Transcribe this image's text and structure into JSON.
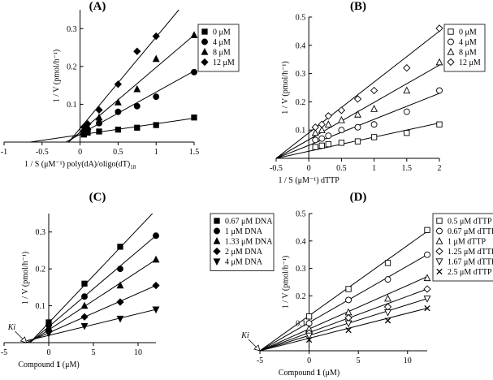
{
  "chart_data": [
    {
      "panel": "(A)",
      "type": "scatter",
      "xlabel": "1 / S (μM⁻¹) poly(dA)/oligo(dT)",
      "xlabel_sub": "18",
      "ylabel": "1 / V (pmol/h⁻¹)",
      "xlim": [
        -1,
        1.5
      ],
      "ylim": [
        0,
        0.35
      ],
      "xticks": [
        "-1",
        "-0.5",
        "0",
        "0.5",
        "1",
        "1.5"
      ],
      "yticks": [
        "0.1",
        "0.2",
        "0.3"
      ],
      "legend_position": "top-right",
      "marker_fill": "filled",
      "series": [
        {
          "name": "0 μM",
          "marker": "square",
          "x": [
            0.05,
            0.1,
            0.25,
            0.5,
            0.75,
            1.0,
            1.5
          ],
          "y": [
            0.02,
            0.025,
            0.028,
            0.033,
            0.038,
            0.045,
            0.065
          ],
          "fit": [
            [
              -1,
              -0.01
            ],
            [
              1.5,
              0.063
            ]
          ]
        },
        {
          "name": "4 μM",
          "marker": "circle",
          "x": [
            0.05,
            0.1,
            0.25,
            0.5,
            0.75,
            1.0,
            1.5
          ],
          "y": [
            0.028,
            0.033,
            0.05,
            0.08,
            0.095,
            0.12,
            0.185
          ],
          "fit": [
            [
              -0.5,
              -0.035
            ],
            [
              1.5,
              0.188
            ]
          ]
        },
        {
          "name": "8 μM",
          "marker": "triangle",
          "x": [
            0.05,
            0.1,
            0.25,
            0.5,
            0.75,
            1.0,
            1.5
          ],
          "y": [
            0.035,
            0.04,
            0.065,
            0.105,
            0.14,
            0.22,
            0.283
          ],
          "fit": [
            [
              -0.3,
              -0.025
            ],
            [
              1.5,
              0.283
            ]
          ]
        },
        {
          "name": "12 μM",
          "marker": "diamond",
          "x": [
            0.05,
            0.1,
            0.25,
            0.5,
            0.75,
            1.0
          ],
          "y": [
            0.04,
            0.048,
            0.085,
            0.153,
            0.24,
            0.28
          ],
          "fit": [
            [
              -0.2,
              -0.012
            ],
            [
              1.3,
              0.35
            ]
          ]
        }
      ]
    },
    {
      "panel": "(B)",
      "type": "scatter",
      "xlabel": "1 / S (μM⁻¹)  dTTP",
      "xlabel_sub": "",
      "ylabel": "1 / V (pmol/h⁻¹)",
      "xlim": [
        -0.5,
        2
      ],
      "ylim": [
        0,
        0.5
      ],
      "xticks": [
        "-0.5",
        "0",
        "0.5",
        "1",
        "1.5",
        "2"
      ],
      "yticks": [
        "0.1",
        "0.2",
        "0.3",
        "0.4",
        "0.5"
      ],
      "legend_position": "top-right",
      "marker_fill": "open",
      "series": [
        {
          "name": "0 μM",
          "marker": "square",
          "x": [
            0.1,
            0.2,
            0.3,
            0.5,
            0.75,
            1.0,
            1.5,
            2.0
          ],
          "y": [
            0.04,
            0.045,
            0.05,
            0.055,
            0.06,
            0.075,
            0.09,
            0.12
          ],
          "fit": [
            [
              -0.5,
              0.0
            ],
            [
              2,
              0.125
            ]
          ]
        },
        {
          "name": "4 μM",
          "marker": "circle",
          "x": [
            0.1,
            0.2,
            0.3,
            0.5,
            0.75,
            1.0,
            1.5,
            2.0
          ],
          "y": [
            0.065,
            0.07,
            0.08,
            0.1,
            0.11,
            0.12,
            0.165,
            0.24
          ],
          "fit": [
            [
              -0.5,
              0.0
            ],
            [
              2,
              0.23
            ]
          ]
        },
        {
          "name": "8 μM",
          "marker": "triangle",
          "x": [
            0.1,
            0.2,
            0.3,
            0.5,
            0.75,
            1.0,
            1.5,
            2.0
          ],
          "y": [
            0.09,
            0.1,
            0.12,
            0.135,
            0.155,
            0.175,
            0.24,
            0.34
          ],
          "fit": [
            [
              -0.5,
              0.0
            ],
            [
              2,
              0.33
            ]
          ]
        },
        {
          "name": "12 μM",
          "marker": "diamond",
          "x": [
            0.1,
            0.2,
            0.3,
            0.5,
            0.75,
            1.0,
            1.5,
            2.0
          ],
          "y": [
            0.11,
            0.12,
            0.15,
            0.17,
            0.21,
            0.24,
            0.32,
            0.46
          ],
          "fit": [
            [
              -0.5,
              0.0
            ],
            [
              2,
              0.45
            ]
          ]
        }
      ]
    },
    {
      "panel": "(C)",
      "type": "scatter",
      "xlabel": "Compound",
      "xlabel_bold": "1",
      "xlabel_unit": "(μM)",
      "ylabel": "1 / V (pmol/h⁻¹)",
      "xlim": [
        -5,
        12
      ],
      "ylim": [
        0,
        0.35
      ],
      "xticks": [
        "-5",
        "0",
        "5",
        "10"
      ],
      "yticks": [
        "0.1",
        "0.2",
        "0.3"
      ],
      "annotation": "Ki",
      "annotation_x": -2.5,
      "legend_position": "top-right",
      "marker_fill": "filled",
      "series": [
        {
          "name": "0.67 μM DNA",
          "marker": "square",
          "x": [
            0,
            4,
            8
          ],
          "y": [
            0.055,
            0.16,
            0.26
          ],
          "fit": [
            [
              -2.5,
              -0.01
            ],
            [
              12,
              0.36
            ]
          ]
        },
        {
          "name": "1 μM DNA",
          "marker": "circle",
          "x": [
            0,
            4,
            8,
            12
          ],
          "y": [
            0.047,
            0.125,
            0.2,
            0.29
          ],
          "fit": [
            [
              -2.5,
              -0.008
            ],
            [
              12,
              0.29
            ]
          ]
        },
        {
          "name": "1.33 μM DNA",
          "marker": "triangle",
          "x": [
            0,
            4,
            8,
            12
          ],
          "y": [
            0.04,
            0.1,
            0.155,
            0.225
          ],
          "fit": [
            [
              -2.5,
              -0.005
            ],
            [
              12,
              0.225
            ]
          ]
        },
        {
          "name": "2 μM DNA",
          "marker": "diamond",
          "x": [
            0,
            4,
            8,
            12
          ],
          "y": [
            0.03,
            0.07,
            0.11,
            0.155
          ],
          "fit": [
            [
              -2.5,
              0.0
            ],
            [
              12,
              0.155
            ]
          ]
        },
        {
          "name": "4 μM DNA",
          "marker": "triangle-down",
          "x": [
            0,
            4,
            8,
            12
          ],
          "y": [
            0.025,
            0.045,
            0.065,
            0.09
          ],
          "fit": [
            [
              -2.5,
              0.005
            ],
            [
              12,
              0.09
            ]
          ]
        }
      ]
    },
    {
      "panel": "(D)",
      "type": "scatter",
      "xlabel": "Compound",
      "xlabel_bold": "1",
      "xlabel_unit": "(μM)",
      "ylabel": "1 / V (pmol/h⁻¹)",
      "xlim": [
        -5,
        12
      ],
      "ylim": [
        0,
        0.5
      ],
      "xticks": [
        "-5",
        "0",
        "5",
        "10"
      ],
      "yticks": [
        "0.1",
        "0.2",
        "0.3",
        "0.4",
        "0.5"
      ],
      "annotation": "Ki",
      "annotation_x": -5,
      "legend_position": "top-right",
      "marker_fill": "open",
      "series": [
        {
          "name": "0.5 μM dTTP",
          "marker": "square",
          "x": [
            0,
            4,
            8,
            12
          ],
          "y": [
            0.125,
            0.225,
            0.32,
            0.44
          ],
          "fit": [
            [
              -5,
              0.0
            ],
            [
              12,
              0.435
            ]
          ]
        },
        {
          "name": "0.67 μM dTTP",
          "marker": "circle",
          "x": [
            0,
            4,
            8,
            12
          ],
          "y": [
            0.1,
            0.185,
            0.26,
            0.35
          ],
          "fit": [
            [
              -5,
              0.0
            ],
            [
              12,
              0.35
            ]
          ]
        },
        {
          "name": "1 μM dTTP",
          "marker": "triangle",
          "x": [
            0,
            4,
            8,
            12
          ],
          "y": [
            0.08,
            0.14,
            0.19,
            0.265
          ],
          "fit": [
            [
              -5,
              0.0
            ],
            [
              12,
              0.27
            ]
          ]
        },
        {
          "name": "1.25 μM dTTP",
          "marker": "diamond",
          "x": [
            0,
            4,
            8,
            12
          ],
          "y": [
            0.065,
            0.12,
            0.16,
            0.225
          ],
          "fit": [
            [
              -5,
              0.0
            ],
            [
              12,
              0.225
            ]
          ]
        },
        {
          "name": "1.67 μM dTTP",
          "marker": "triangle-down",
          "x": [
            0,
            4,
            8,
            12
          ],
          "y": [
            0.055,
            0.1,
            0.14,
            0.19
          ],
          "fit": [
            [
              -5,
              0.0
            ],
            [
              12,
              0.19
            ]
          ]
        },
        {
          "name": "2.5 μM dTTP",
          "marker": "cross",
          "x": [
            0,
            4,
            8,
            12
          ],
          "y": [
            0.04,
            0.075,
            0.11,
            0.155
          ],
          "fit": [
            [
              -5,
              0.0
            ],
            [
              12,
              0.155
            ]
          ]
        }
      ]
    }
  ]
}
